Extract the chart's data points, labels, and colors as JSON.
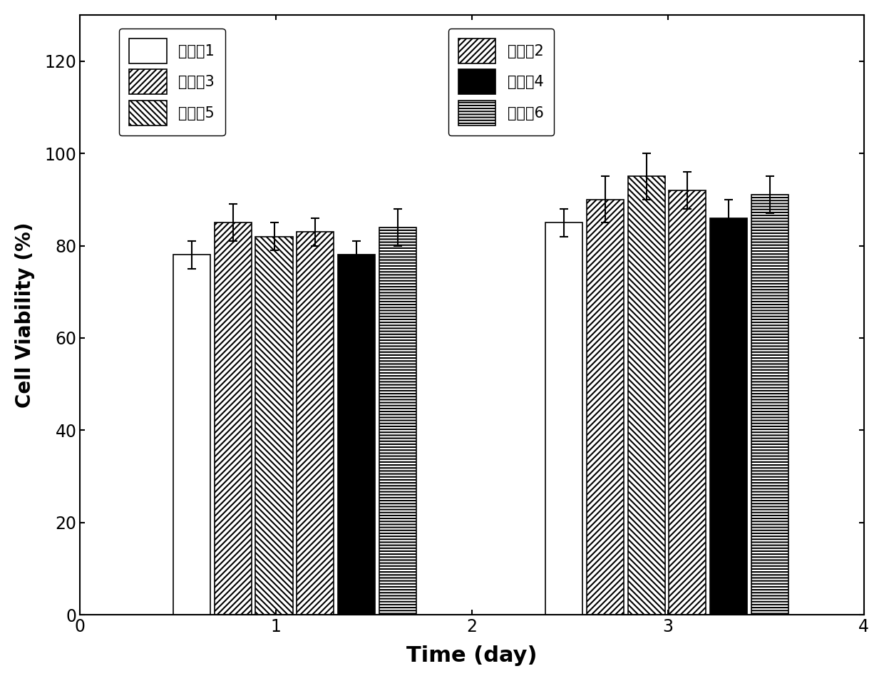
{
  "xlabel": "Time (day)",
  "ylabel": "Cell Viability (%)",
  "ylim": [
    0,
    130
  ],
  "yticks": [
    0,
    20,
    40,
    60,
    80,
    100,
    120
  ],
  "xlim": [
    0,
    4
  ],
  "xticks": [
    0,
    1,
    2,
    3,
    4
  ],
  "groups": [
    {
      "label": "实施例1",
      "day1_x": 0.57,
      "day3_x": 2.47,
      "day1_val": 78,
      "day3_val": 85,
      "day1_err": 3,
      "day3_err": 3
    },
    {
      "label": "实施例3",
      "day1_x": 0.78,
      "day3_x": 2.68,
      "day1_val": 85,
      "day3_val": 90,
      "day1_err": 4,
      "day3_err": 5
    },
    {
      "label": "实施例5",
      "day1_x": 0.99,
      "day3_x": 2.89,
      "day1_val": 82,
      "day3_val": 95,
      "day1_err": 3,
      "day3_err": 5
    },
    {
      "label": "实施例2",
      "day1_x": 1.2,
      "day3_x": 3.1,
      "day1_val": 83,
      "day3_val": 92,
      "day1_err": 3,
      "day3_err": 4
    },
    {
      "label": "实施例4",
      "day1_x": 1.41,
      "day3_x": 3.31,
      "day1_val": 78,
      "day3_val": 86,
      "day1_err": 3,
      "day3_err": 4
    },
    {
      "label": "实施例6",
      "day1_x": 1.62,
      "day3_x": 3.52,
      "day1_val": 84,
      "day3_val": 91,
      "day1_err": 4,
      "day3_err": 4
    }
  ],
  "bar_width": 0.19,
  "legend_fontsize": 15,
  "tick_fontsize": 17,
  "xlabel_fontsize": 22,
  "ylabel_fontsize": 20,
  "background_color": "white"
}
